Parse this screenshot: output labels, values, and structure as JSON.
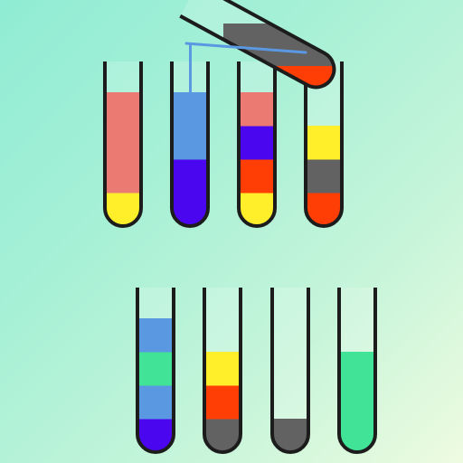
{
  "colors": {
    "salmon": "#ea7a72",
    "yellow": "#ffee2a",
    "light_blue": "#5a98e2",
    "indigo": "#4a06ee",
    "red": "#ff3e06",
    "gray": "#626262",
    "green": "#41e496",
    "outline": "#1c1c1c",
    "pour_stream": "#5fa7e6"
  },
  "tubes": [
    {
      "id": "tube-1",
      "row": 1,
      "layers": [
        "yellow",
        "salmon",
        "salmon",
        "salmon"
      ]
    },
    {
      "id": "tube-2",
      "row": 1,
      "layers": [
        "indigo",
        "indigo",
        "light_blue",
        "light_blue"
      ]
    },
    {
      "id": "tube-3",
      "row": 1,
      "layers": [
        "yellow",
        "red",
        "indigo",
        "salmon"
      ]
    },
    {
      "id": "tube-4",
      "row": 1,
      "layers": [
        "red",
        "gray",
        "yellow"
      ]
    },
    {
      "id": "tube-5",
      "row": 2,
      "layers": [
        "indigo",
        "light_blue",
        "green",
        "light_blue"
      ]
    },
    {
      "id": "tube-6",
      "row": 2,
      "layers": [
        "gray",
        "red",
        "yellow"
      ]
    },
    {
      "id": "tube-7",
      "row": 2,
      "layers": [
        "gray"
      ]
    },
    {
      "id": "tube-8",
      "row": 2,
      "layers": [
        "green",
        "green",
        "green"
      ]
    }
  ],
  "pouring_tube": {
    "id": "tube-pouring",
    "layers": [
      "red",
      "gray"
    ],
    "stream_color": "light_blue",
    "target": "tube-2"
  }
}
